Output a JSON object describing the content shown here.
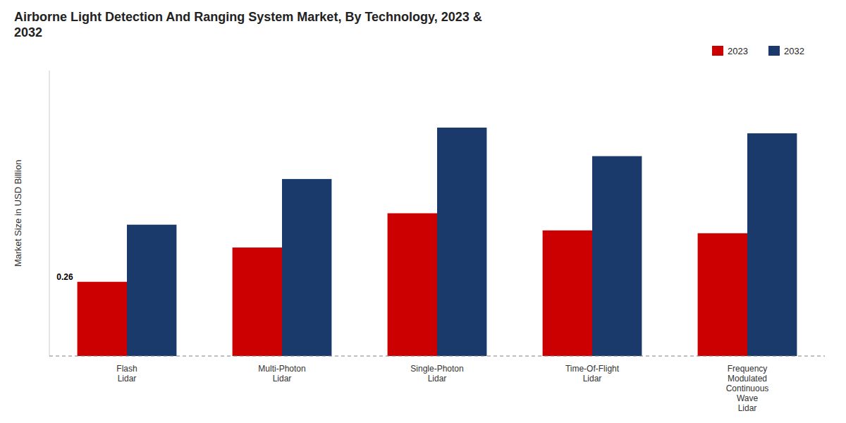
{
  "chart_data": {
    "type": "bar",
    "title": "Airborne Light Detection And Ranging System Market, By Technology, 2023 &\n2032",
    "y_label": "Market Size in USD Billion",
    "categories": [
      "Flash\nLidar",
      "Multi-Photon\nLidar",
      "Single-Photon\nLidar",
      "Time-Of-Flight\nLidar",
      "Frequency\nModulated\nContinuous\nWave\nLidar"
    ],
    "series": [
      {
        "name": "2023",
        "color": "#cc0000",
        "values": [
          0.26,
          0.38,
          0.5,
          0.44,
          0.43
        ]
      },
      {
        "name": "2032",
        "color": "#1a3a6b",
        "values": [
          0.46,
          0.62,
          0.8,
          0.7,
          0.78
        ]
      }
    ],
    "annotations": [
      {
        "text": "0.26",
        "series": "2023",
        "category": "Flash\nLidar"
      }
    ],
    "ylim": [
      0,
      1.0
    ],
    "yticks": [],
    "tick_labels": "x",
    "grid": false,
    "legend": "upper right"
  }
}
